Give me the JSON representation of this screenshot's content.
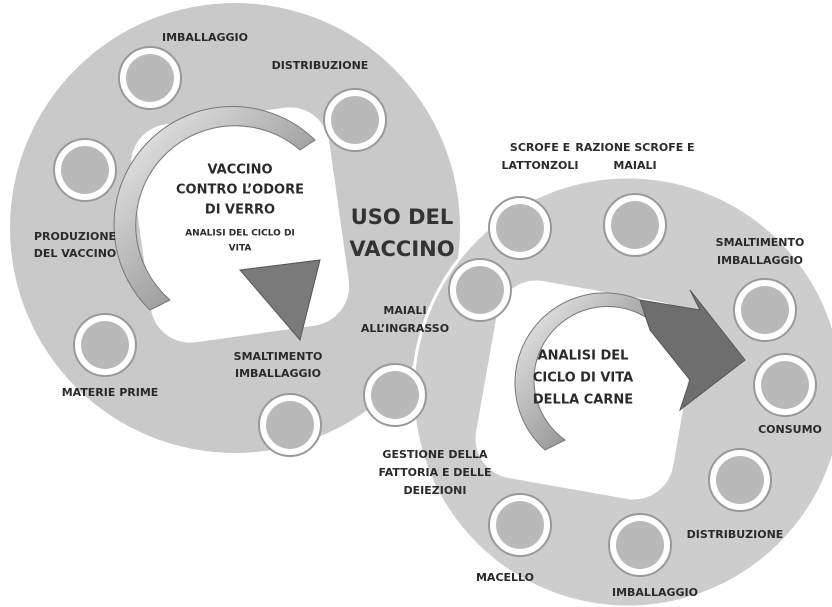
{
  "left_cycle": {
    "center_lines": [
      "VACCINO",
      "CONTRO L’ODORE",
      "DI VERRO"
    ],
    "subtitle_lines": [
      "ANALISI DEL CICLO DI",
      "VITA"
    ],
    "nodes": [
      {
        "label_lines": [
          "IMBALLAGGIO"
        ]
      },
      {
        "label_lines": [
          "DISTRIBUZIONE"
        ]
      },
      {
        "label_lines": [
          "PRODUZIONE",
          "DEL VACCINO"
        ]
      },
      {
        "label_lines": [
          "MATERIE PRIME"
        ]
      },
      {
        "label_lines": [
          "SMALTIMENTO",
          "IMBALLAGGIO"
        ]
      }
    ]
  },
  "middle_label_lines": [
    "USO DEL",
    "VACCINO"
  ],
  "right_cycle": {
    "center_lines": [
      "ANALISI DEL",
      "CICLO DI VITA",
      "DELLA CARNE"
    ],
    "nodes": [
      {
        "label_lines": [
          "SCROFE E",
          "LATTONZOLI"
        ]
      },
      {
        "label_lines": [
          "RAZIONE SCROFE E",
          "MAIALI"
        ]
      },
      {
        "label_lines": [
          "SMALTIMENTO",
          "IMBALLAGGIO"
        ]
      },
      {
        "label_lines": [
          "CONSUMO"
        ]
      },
      {
        "label_lines": [
          "DISTRIBUZIONE"
        ]
      },
      {
        "label_lines": [
          "IMBALLAGGIO"
        ]
      },
      {
        "label_lines": [
          "MACELLO"
        ]
      },
      {
        "label_lines": [
          "GESTIONE DELLA",
          "FATTORIA E DELLE",
          "DEIEZIONI"
        ]
      },
      {
        "label_lines": [
          "MAIALI",
          "ALL’INGRASSO"
        ]
      }
    ]
  }
}
